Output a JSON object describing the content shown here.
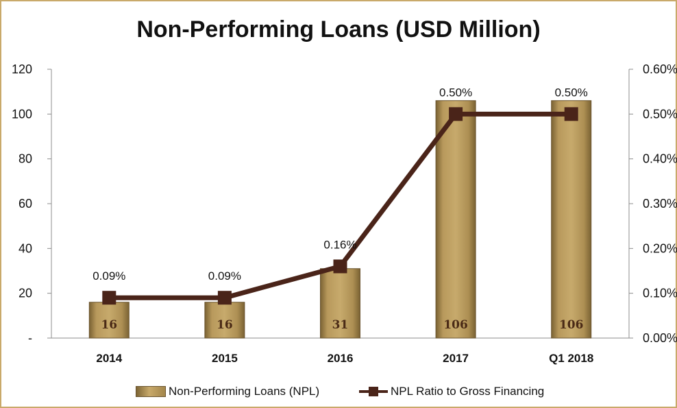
{
  "chart_data": {
    "type": "bar",
    "title": "Non-Performing Loans (USD Million)",
    "categories": [
      "2014",
      "2015",
      "2016",
      "2017",
      "Q1 2018"
    ],
    "series": [
      {
        "name": "Non-Performing Loans (NPL)",
        "type": "bar",
        "axis": "left",
        "values": [
          16,
          16,
          31,
          106,
          106
        ],
        "labels": [
          "16",
          "16",
          "31",
          "106",
          "106"
        ],
        "color": "#b39559"
      },
      {
        "name": "NPL Ratio to Gross Financing",
        "type": "line",
        "axis": "right",
        "values": [
          0.09,
          0.09,
          0.16,
          0.5,
          0.5
        ],
        "labels": [
          "0.09%",
          "0.09%",
          "0.16%",
          "0.50%",
          "0.50%"
        ],
        "color": "#4a2419"
      }
    ],
    "y_left": {
      "ylim": [
        0,
        120
      ],
      "ticks": [
        "-",
        "20",
        "40",
        "60",
        "80",
        "100",
        "120"
      ]
    },
    "y_right": {
      "ylim": [
        0,
        0.6
      ],
      "unit": "%",
      "ticks": [
        "0.00%",
        "0.10%",
        "0.20%",
        "0.30%",
        "0.40%",
        "0.50%",
        "0.60%"
      ]
    },
    "grid": false,
    "legend": "bottom"
  }
}
